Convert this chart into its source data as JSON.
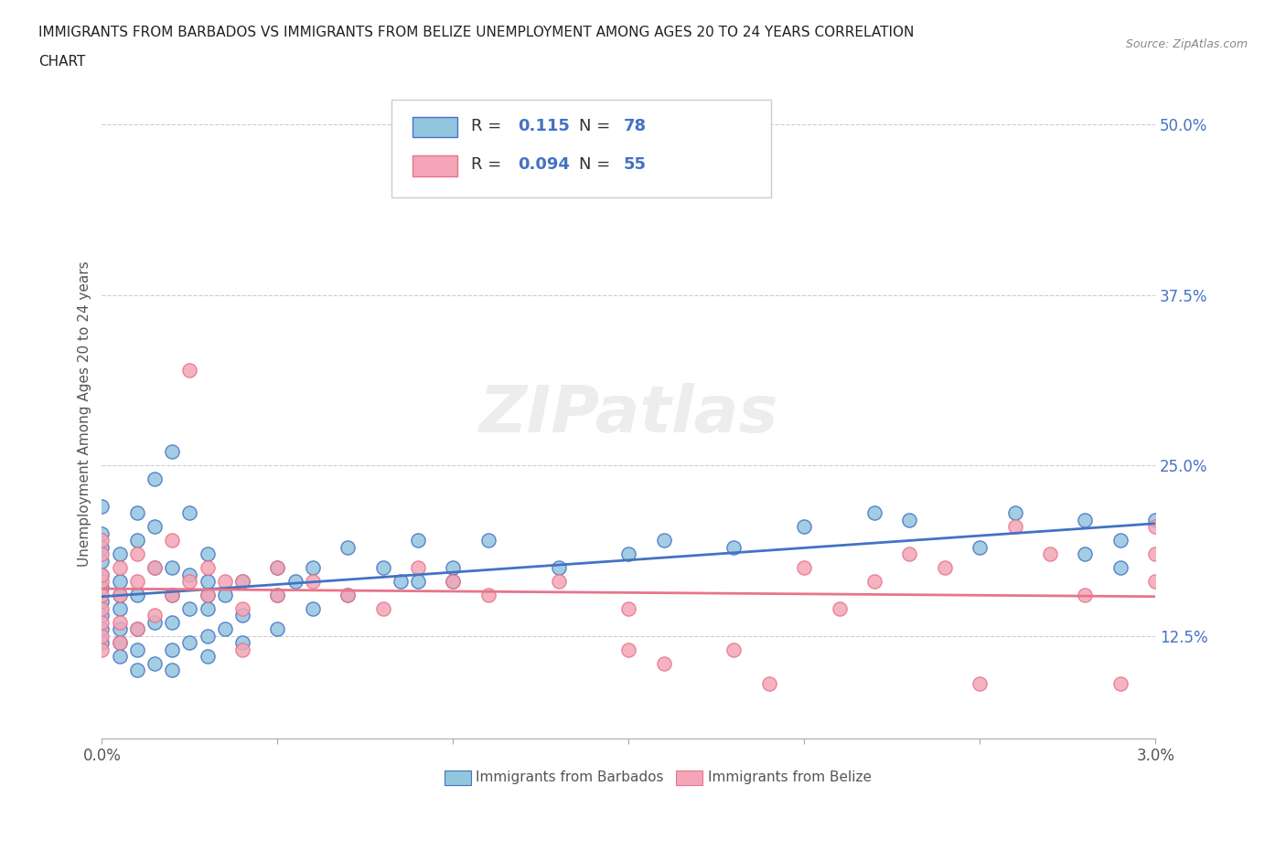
{
  "title_line1": "IMMIGRANTS FROM BARBADOS VS IMMIGRANTS FROM BELIZE UNEMPLOYMENT AMONG AGES 20 TO 24 YEARS CORRELATION",
  "title_line2": "CHART",
  "source": "Source: ZipAtlas.com",
  "ylabel": "Unemployment Among Ages 20 to 24 years",
  "x_min": 0.0,
  "x_max": 0.03,
  "y_min": 0.05,
  "y_max": 0.525,
  "x_ticks": [
    0.0,
    0.005,
    0.01,
    0.015,
    0.02,
    0.025,
    0.03
  ],
  "x_tick_labels": [
    "0.0%",
    "",
    "",
    "",
    "",
    "",
    "3.0%"
  ],
  "y_ticks": [
    0.125,
    0.25,
    0.375,
    0.5
  ],
  "y_tick_labels": [
    "12.5%",
    "25.0%",
    "37.5%",
    "50.0%"
  ],
  "color_barbados": "#92C5DE",
  "color_belize": "#F4A6B8",
  "line_color_barbados": "#4472C4",
  "line_color_belize": "#E8748A",
  "R_barbados": 0.115,
  "N_barbados": 78,
  "R_belize": 0.094,
  "N_belize": 55,
  "barbados_x": [
    0.0,
    0.0,
    0.0,
    0.0,
    0.0,
    0.0,
    0.0,
    0.0,
    0.0,
    0.0,
    0.0005,
    0.0005,
    0.0005,
    0.0005,
    0.0005,
    0.0005,
    0.0005,
    0.001,
    0.001,
    0.001,
    0.001,
    0.001,
    0.001,
    0.0015,
    0.0015,
    0.0015,
    0.0015,
    0.0015,
    0.002,
    0.002,
    0.002,
    0.002,
    0.002,
    0.002,
    0.0025,
    0.0025,
    0.0025,
    0.0025,
    0.003,
    0.003,
    0.003,
    0.003,
    0.003,
    0.003,
    0.0035,
    0.0035,
    0.004,
    0.004,
    0.004,
    0.005,
    0.005,
    0.005,
    0.006,
    0.006,
    0.007,
    0.008,
    0.009,
    0.009,
    0.01,
    0.01,
    0.011,
    0.013,
    0.015,
    0.016,
    0.018,
    0.02,
    0.022,
    0.023,
    0.025,
    0.026,
    0.028,
    0.028,
    0.029,
    0.029,
    0.03,
    0.0055,
    0.0085,
    0.007
  ],
  "barbados_y": [
    0.12,
    0.13,
    0.14,
    0.15,
    0.16,
    0.17,
    0.18,
    0.19,
    0.2,
    0.22,
    0.11,
    0.12,
    0.13,
    0.145,
    0.155,
    0.165,
    0.185,
    0.1,
    0.115,
    0.13,
    0.155,
    0.195,
    0.215,
    0.105,
    0.135,
    0.175,
    0.205,
    0.24,
    0.1,
    0.115,
    0.135,
    0.155,
    0.175,
    0.26,
    0.12,
    0.145,
    0.17,
    0.215,
    0.11,
    0.125,
    0.145,
    0.155,
    0.165,
    0.185,
    0.13,
    0.155,
    0.12,
    0.14,
    0.165,
    0.13,
    0.155,
    0.175,
    0.145,
    0.175,
    0.155,
    0.175,
    0.165,
    0.195,
    0.175,
    0.165,
    0.195,
    0.175,
    0.185,
    0.195,
    0.19,
    0.205,
    0.215,
    0.21,
    0.19,
    0.215,
    0.21,
    0.185,
    0.195,
    0.175,
    0.21,
    0.165,
    0.165,
    0.19
  ],
  "belize_x": [
    0.0,
    0.0,
    0.0,
    0.0,
    0.0,
    0.0,
    0.0,
    0.0,
    0.0,
    0.0005,
    0.0005,
    0.0005,
    0.0005,
    0.001,
    0.001,
    0.001,
    0.0015,
    0.0015,
    0.002,
    0.002,
    0.0025,
    0.0025,
    0.003,
    0.003,
    0.0035,
    0.004,
    0.004,
    0.004,
    0.005,
    0.005,
    0.006,
    0.007,
    0.008,
    0.009,
    0.01,
    0.011,
    0.013,
    0.015,
    0.015,
    0.016,
    0.018,
    0.019,
    0.02,
    0.021,
    0.022,
    0.023,
    0.024,
    0.025,
    0.026,
    0.027,
    0.028,
    0.029,
    0.03,
    0.03,
    0.03
  ],
  "belize_y": [
    0.115,
    0.125,
    0.135,
    0.145,
    0.155,
    0.165,
    0.17,
    0.185,
    0.195,
    0.12,
    0.135,
    0.155,
    0.175,
    0.13,
    0.165,
    0.185,
    0.14,
    0.175,
    0.155,
    0.195,
    0.165,
    0.32,
    0.155,
    0.175,
    0.165,
    0.115,
    0.145,
    0.165,
    0.155,
    0.175,
    0.165,
    0.155,
    0.145,
    0.175,
    0.165,
    0.155,
    0.165,
    0.145,
    0.115,
    0.105,
    0.115,
    0.09,
    0.175,
    0.145,
    0.165,
    0.185,
    0.175,
    0.09,
    0.205,
    0.185,
    0.155,
    0.09,
    0.165,
    0.185,
    0.205
  ],
  "watermark": "ZIPatlas",
  "background_color": "#FFFFFF",
  "grid_color": "#CCCCCC"
}
